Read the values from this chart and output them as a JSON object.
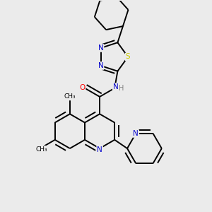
{
  "background_color": "#ebebeb",
  "bond_color": "#000000",
  "atom_colors": {
    "N": "#0000cc",
    "O": "#ff0000",
    "S": "#cccc00",
    "H": "#808080"
  },
  "lw": 1.4,
  "figsize": [
    3.0,
    3.0
  ],
  "dpi": 100
}
